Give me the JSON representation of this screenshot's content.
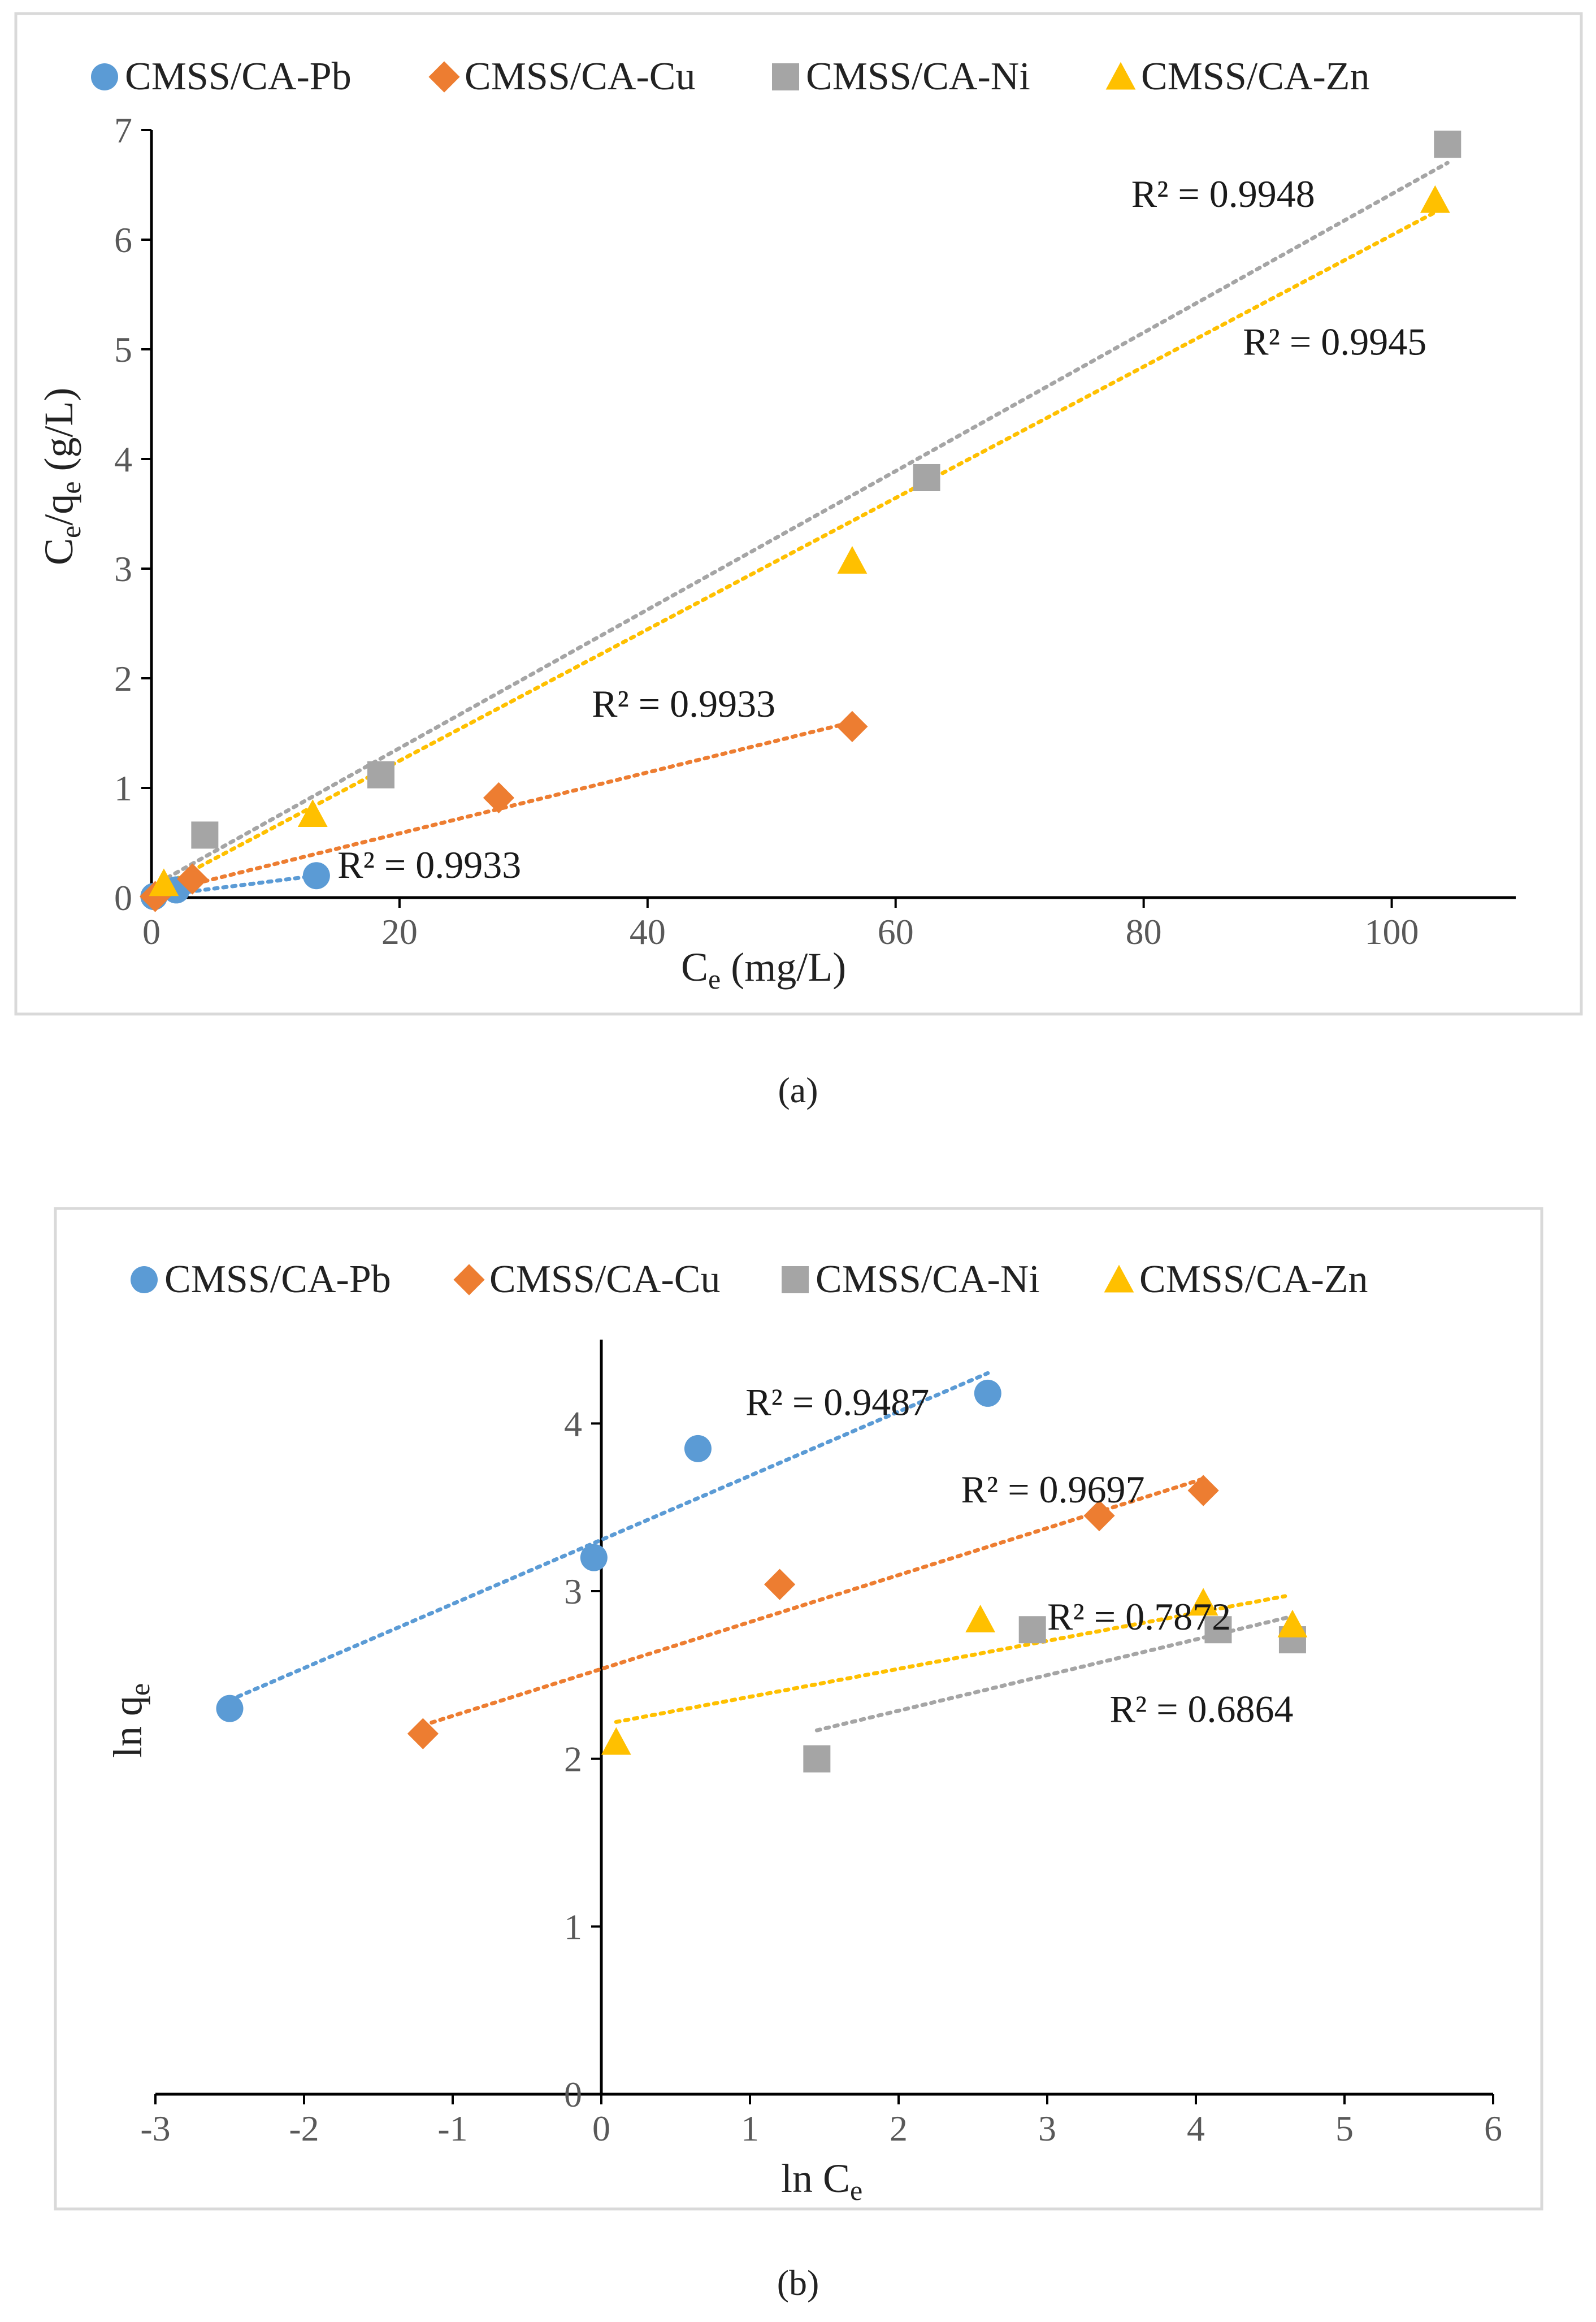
{
  "chart_data": [
    {
      "type": "scatter",
      "panel_label": "(a)",
      "xlabel_main": "C",
      "xlabel_sub": "e",
      "xlabel_units": " (mg/L)",
      "ylabel_a": "C",
      "ylabel_a_sub": "e",
      "ylabel_b": "/q",
      "ylabel_b_sub": "e",
      "ylabel_units": " (g/L)",
      "xlim": [
        0,
        110
      ],
      "ylim": [
        0,
        7
      ],
      "xticks": [
        0,
        20,
        40,
        60,
        80,
        100
      ],
      "yticks": [
        0,
        1,
        2,
        3,
        4,
        5,
        6,
        7
      ],
      "legend_position": "top",
      "series": [
        {
          "name": "CMSS/CA-Pb",
          "marker": "circle",
          "color": "#5B9BD5",
          "x": [
            0.2,
            2.0,
            13.3
          ],
          "y": [
            0.01,
            0.07,
            0.2
          ],
          "trend": {
            "x": [
              0,
              13.3
            ],
            "y": [
              0.01,
              0.2
            ]
          },
          "r2_label": "R² = 0.9933",
          "r2_anchor": [
            15,
            0.18
          ]
        },
        {
          "name": "CMSS/CA-Cu",
          "marker": "diamond",
          "color": "#ED7D31",
          "x": [
            0.3,
            3.3,
            28.0,
            56.5
          ],
          "y": [
            0.01,
            0.17,
            0.91,
            1.56
          ],
          "trend": {
            "x": [
              0,
              56.5
            ],
            "y": [
              0.03,
              1.6
            ]
          },
          "r2_label": "R² = 0.9933",
          "r2_anchor": [
            35.5,
            1.65
          ]
        },
        {
          "name": "CMSS/CA-Ni",
          "marker": "square",
          "color": "#A5A5A5",
          "x": [
            4.3,
            18.5,
            62.5,
            104.5
          ],
          "y": [
            0.57,
            1.12,
            3.83,
            6.87
          ],
          "trend": {
            "x": [
              0,
              104.5
            ],
            "y": [
              0.1,
              6.7
            ]
          },
          "r2_label": "R² = 0.9948",
          "r2_anchor": [
            79,
            6.3
          ]
        },
        {
          "name": "CMSS/CA-Zn",
          "marker": "triangle",
          "color": "#FFC000",
          "x": [
            1.0,
            13.0,
            56.5,
            103.5
          ],
          "y": [
            0.13,
            0.76,
            3.07,
            6.36
          ],
          "trend": {
            "x": [
              0,
              103.5
            ],
            "y": [
              0.05,
              6.25
            ]
          },
          "r2_label": "R² = 0.9945",
          "r2_anchor": [
            88,
            4.95
          ]
        }
      ]
    },
    {
      "type": "scatter",
      "panel_label": "(b)",
      "xlabel_main": "ln C",
      "xlabel_sub": "e",
      "ylabel_main": "ln q",
      "ylabel_sub": "e",
      "xlim": [
        -3,
        6
      ],
      "ylim": [
        0,
        4.5
      ],
      "xticks": [
        -3,
        -2,
        -1,
        0,
        1,
        2,
        3,
        4,
        5,
        6
      ],
      "yticks": [
        0,
        1,
        2,
        3,
        4
      ],
      "legend_position": "top",
      "series": [
        {
          "name": "CMSS/CA-Pb",
          "marker": "circle",
          "color": "#5B9BD5",
          "x": [
            -2.5,
            -0.05,
            0.65,
            2.6
          ],
          "y": [
            2.3,
            3.2,
            3.85,
            4.18
          ],
          "trend": {
            "x": [
              -2.5,
              2.6
            ],
            "y": [
              2.35,
              4.3
            ]
          },
          "r2_label": "R² = 0.9487",
          "r2_anchor": [
            0.97,
            4.05
          ]
        },
        {
          "name": "CMSS/CA-Cu",
          "marker": "diamond",
          "color": "#ED7D31",
          "x": [
            -1.2,
            1.2,
            3.35,
            4.05
          ],
          "y": [
            2.15,
            3.04,
            3.45,
            3.6
          ],
          "trend": {
            "x": [
              -1.2,
              4.05
            ],
            "y": [
              2.2,
              3.67
            ]
          },
          "r2_label": "R² = 0.9697",
          "r2_anchor": [
            2.42,
            3.53
          ]
        },
        {
          "name": "CMSS/CA-Ni",
          "marker": "square",
          "color": "#A5A5A5",
          "x": [
            1.45,
            2.9,
            4.15,
            4.65
          ],
          "y": [
            2.0,
            2.77,
            2.77,
            2.71
          ],
          "trend": {
            "x": [
              1.45,
              4.65
            ],
            "y": [
              2.17,
              2.85
            ]
          },
          "r2_label": "R² = 0.6864",
          "r2_anchor": [
            3.42,
            2.22
          ]
        },
        {
          "name": "CMSS/CA-Zn",
          "marker": "triangle",
          "color": "#FFC000",
          "x": [
            0.1,
            2.55,
            4.05,
            4.65
          ],
          "y": [
            2.1,
            2.83,
            2.93,
            2.8
          ],
          "trend": {
            "x": [
              0.1,
              4.6
            ],
            "y": [
              2.22,
              2.97
            ]
          },
          "r2_label": "R² = 0.7872",
          "r2_anchor": [
            3.0,
            2.77
          ]
        }
      ]
    }
  ]
}
